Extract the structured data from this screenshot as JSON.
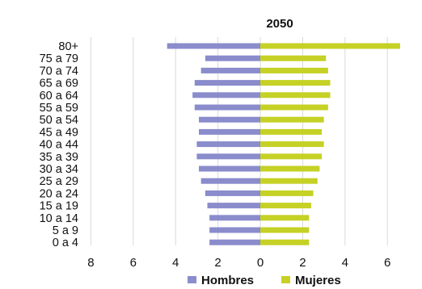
{
  "chart_data": {
    "type": "bar",
    "title": "2050",
    "orientation": "horizontal",
    "categories": [
      "80+",
      "75 a 79",
      "70 a 74",
      "65 a 69",
      "60 a 64",
      "55 a 59",
      "50 a 54",
      "45 a 49",
      "40 a 44",
      "35 a 39",
      "30 a 34",
      "25 a 29",
      "20 a 24",
      "15 a 19",
      "10 a 14",
      "5 a 9",
      "0 a 4"
    ],
    "series": [
      {
        "name": "Hombres",
        "color": "#8a8ccc",
        "values": [
          -4.4,
          -2.6,
          -2.8,
          -3.1,
          -3.2,
          -3.1,
          -2.9,
          -2.9,
          -3.0,
          -3.0,
          -2.9,
          -2.8,
          -2.6,
          -2.5,
          -2.4,
          -2.4,
          -2.4
        ]
      },
      {
        "name": "Mujeres",
        "color": "#c5d125",
        "values": [
          6.6,
          3.1,
          3.2,
          3.3,
          3.3,
          3.2,
          3.0,
          2.9,
          3.0,
          2.9,
          2.8,
          2.7,
          2.5,
          2.4,
          2.3,
          2.3,
          2.3
        ]
      }
    ],
    "xlim": [
      -8,
      8
    ],
    "xticks": [
      -8,
      -6,
      -4,
      -2,
      0,
      2,
      4,
      6
    ],
    "xtick_labels": [
      "8",
      "6",
      "4",
      "2",
      "0",
      "2",
      "4",
      "6"
    ],
    "grid": true,
    "legend_position": "bottom"
  }
}
